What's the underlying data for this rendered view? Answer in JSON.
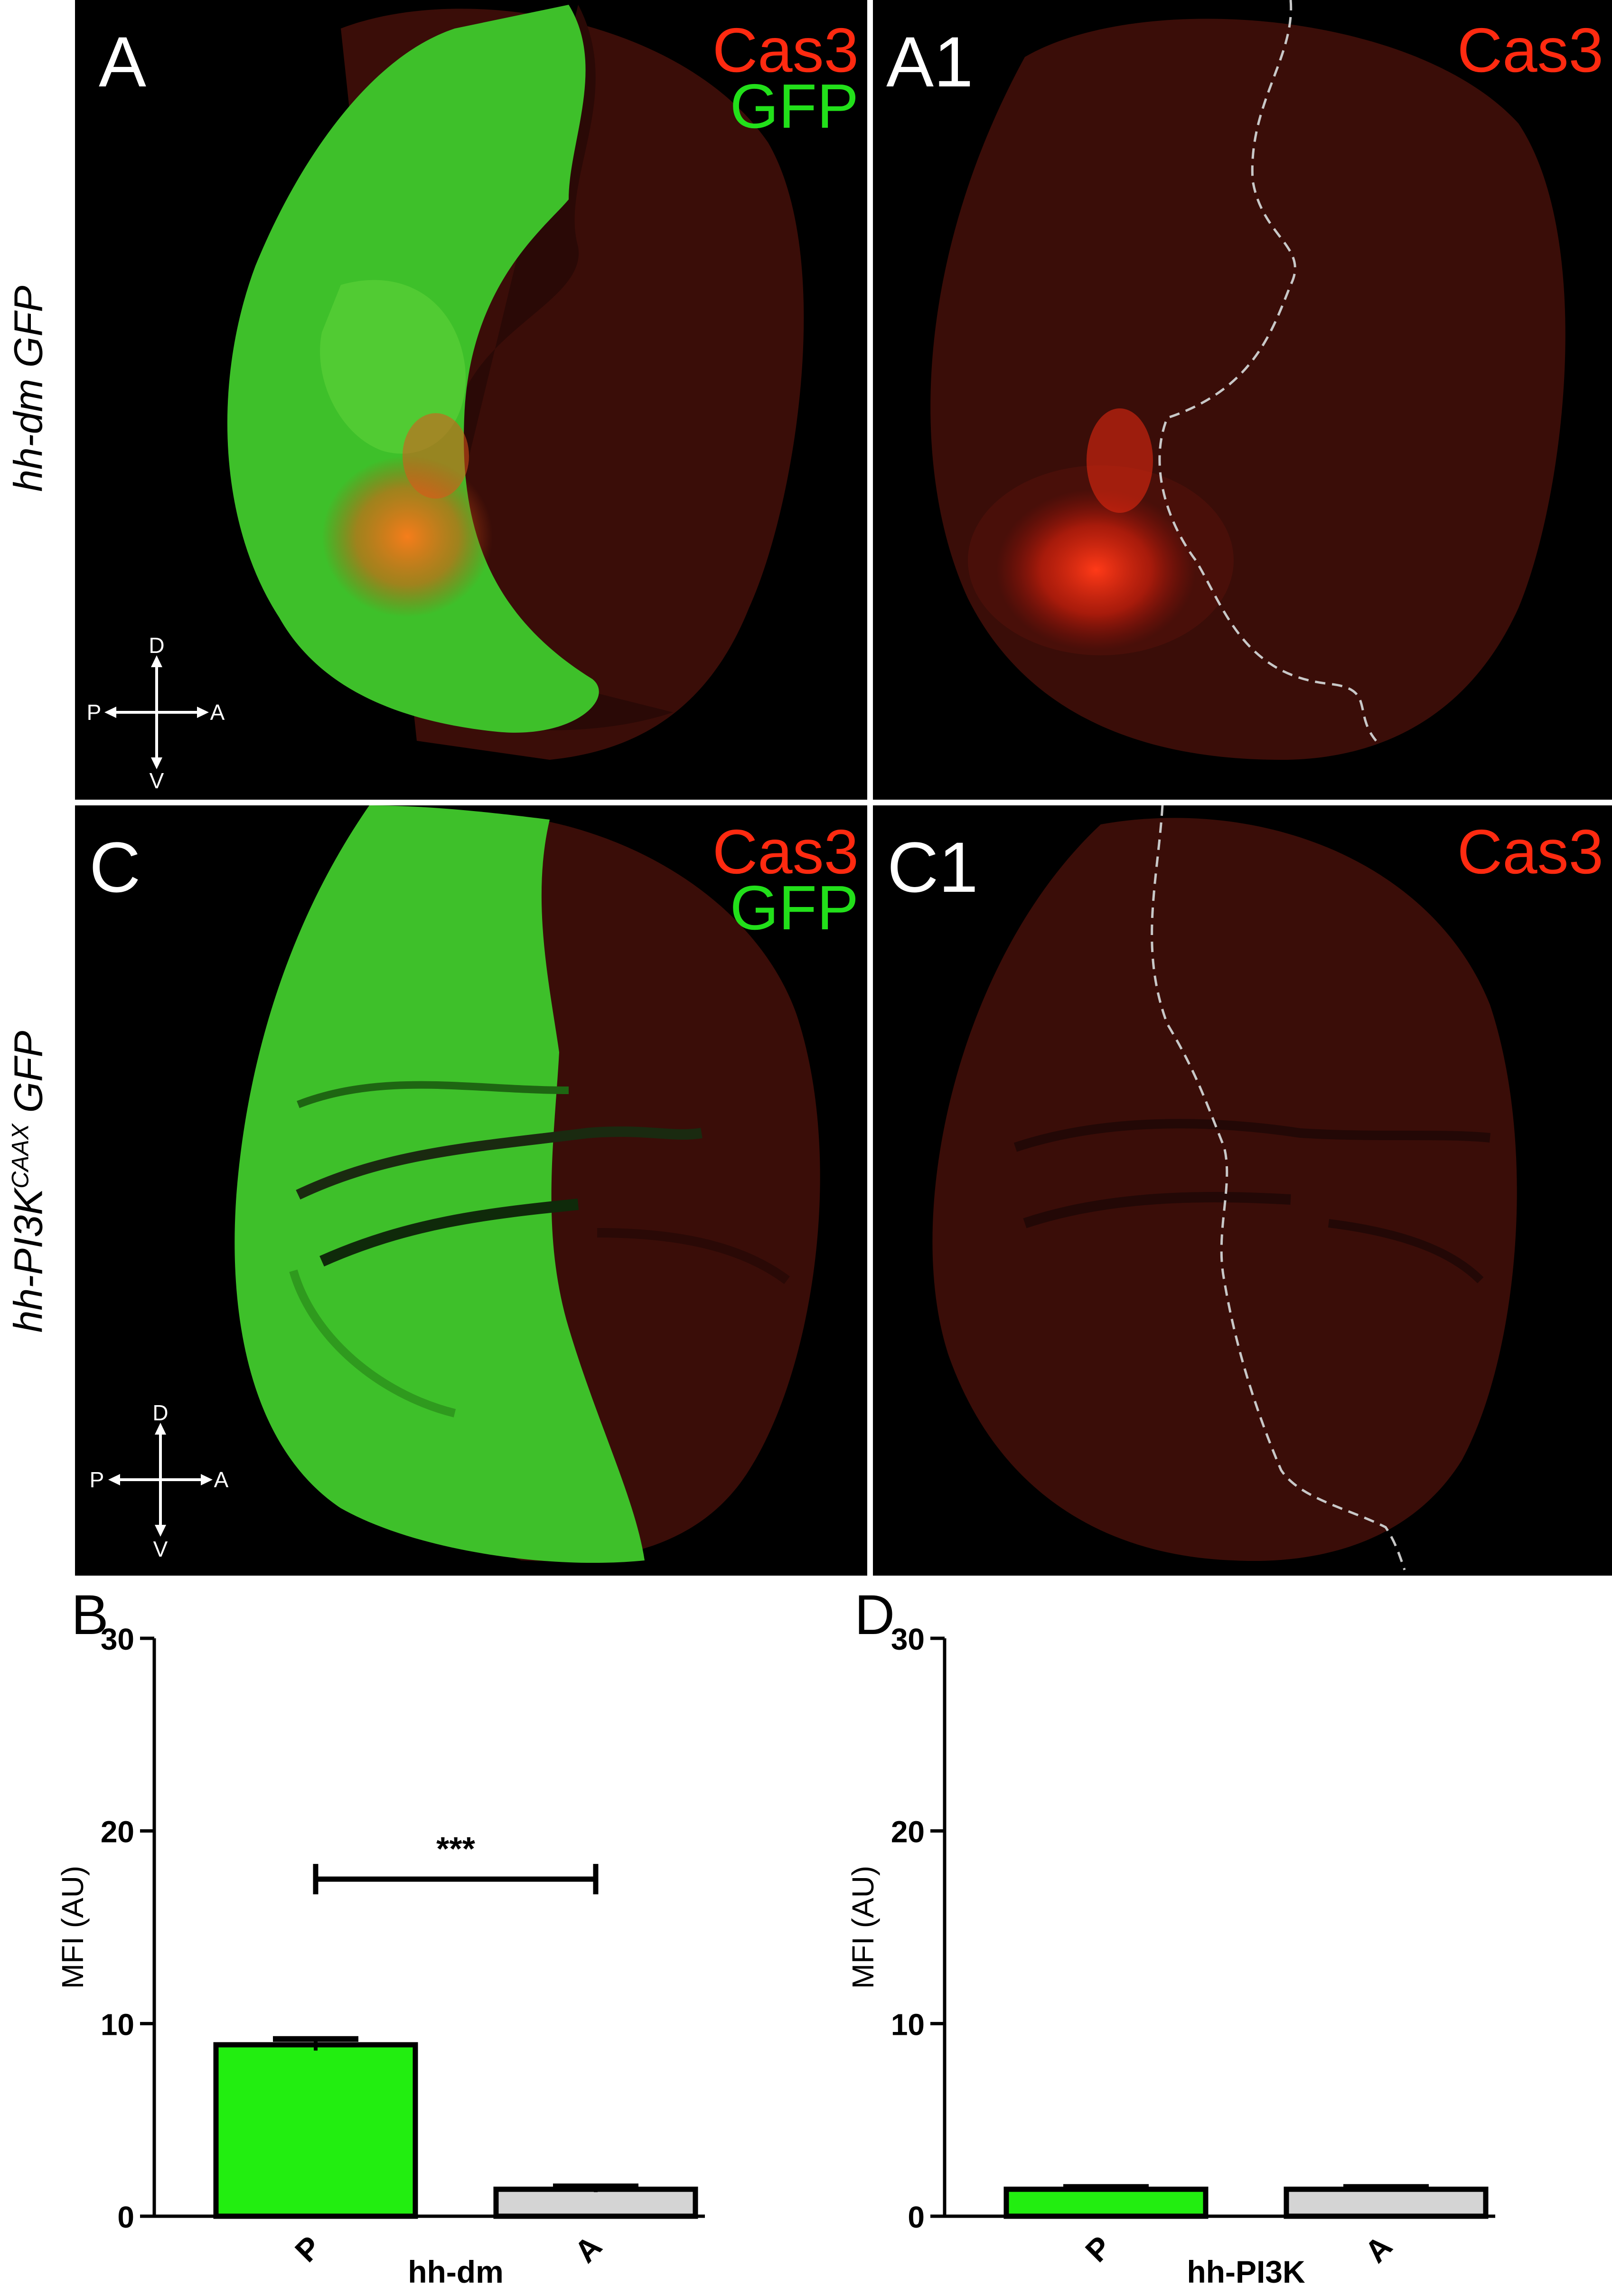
{
  "panels": {
    "A": {
      "letter": "A",
      "channels": [
        "Cas3",
        "GFP"
      ]
    },
    "A1": {
      "letter": "A1",
      "channels": [
        "Cas3"
      ]
    },
    "C": {
      "letter": "C",
      "channels": [
        "Cas3",
        "GFP"
      ]
    },
    "C1": {
      "letter": "C1",
      "channels": [
        "Cas3"
      ]
    }
  },
  "genotypes": {
    "row1": {
      "main": "hh-dm GFP"
    },
    "row2": {
      "pre": "hh-PI3K",
      "sup": "CAAX",
      "post": " GFP"
    }
  },
  "orientation": {
    "d": "D",
    "v": "V",
    "p": "P",
    "a": "A"
  },
  "colors": {
    "cas3": "#ff2a10",
    "gfp": "#22e01a",
    "bar_p": "#22ee10",
    "bar_a": "#d4d4d4"
  },
  "chart_data": [
    {
      "panel_label": "B",
      "type": "bar",
      "categories": [
        "P",
        "A"
      ],
      "values": [
        8.9,
        1.4
      ],
      "errors": [
        0.3,
        0.15
      ],
      "colors": [
        "#22ee10",
        "#d4d4d4"
      ],
      "xlabel": "hh-dm",
      "ylabel": "MFI (AU)",
      "ylim": [
        0,
        30
      ],
      "yticks": [
        0,
        10,
        20,
        30
      ],
      "significance": {
        "from": 0,
        "to": 1,
        "label": "***",
        "y": 17.5
      }
    },
    {
      "panel_label": "D",
      "type": "bar",
      "categories": [
        "P",
        "A"
      ],
      "values": [
        1.4,
        1.4
      ],
      "errors": [
        0.12,
        0.12
      ],
      "colors": [
        "#22ee10",
        "#d4d4d4"
      ],
      "xlabel": "hh-PI3K",
      "ylabel": "MFI (AU)",
      "ylim": [
        0,
        30
      ],
      "yticks": [
        0,
        10,
        20,
        30
      ]
    }
  ]
}
